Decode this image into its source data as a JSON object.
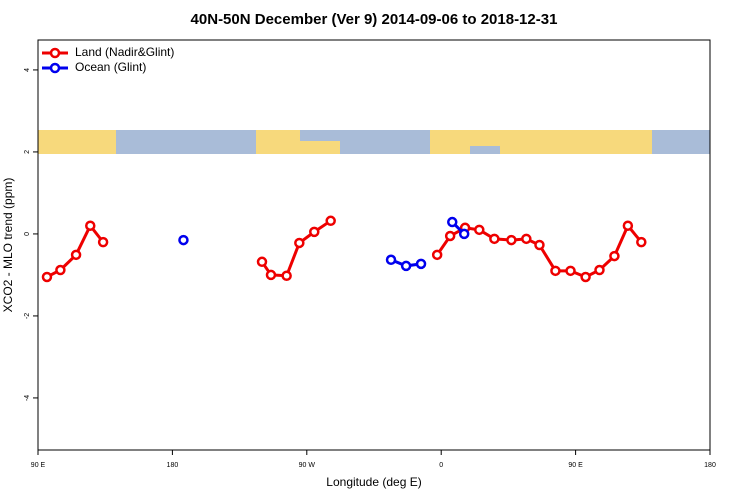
{
  "chart_data": {
    "type": "line",
    "title": "40N-50N December (Ver 9)   2014-09-06 to 2018-12-31",
    "xlabel": "Longitude (deg E)",
    "ylabel": "XCO2 - MLO trend (ppm)",
    "xlim": [
      90,
      540
    ],
    "ylim": [
      -5.27,
      4.73
    ],
    "xticks": [
      {
        "value": 90,
        "label": "90 E"
      },
      180,
      {
        "value": 270,
        "label": "90 W"
      },
      {
        "value": 360,
        "label": "0"
      },
      {
        "value": 450,
        "label": "90 E"
      },
      {
        "value": 540,
        "label": "180"
      }
    ],
    "yticks": [
      4,
      2,
      0,
      -2,
      -4
    ],
    "legend": "top-left",
    "series": [
      {
        "name": "Land (Nadir&Glint)",
        "color": "#ee0000",
        "x": [
          96,
          105,
          115.5,
          125,
          133.6,
          null,
          240,
          246,
          256.5,
          265,
          275,
          286,
          null,
          357.3,
          366,
          376,
          385.5,
          395.6,
          407,
          417,
          425.8,
          436.5,
          446.6,
          456.7,
          466,
          476,
          485,
          494
        ],
        "values": [
          -1.05,
          -0.88,
          -0.51,
          0.2,
          -0.2,
          null,
          -0.68,
          -1.0,
          -1.02,
          -0.22,
          0.05,
          0.32,
          null,
          -0.51,
          -0.05,
          0.15,
          0.1,
          -0.12,
          -0.15,
          -0.12,
          -0.27,
          -0.9,
          -0.9,
          -1.05,
          -0.88,
          -0.54,
          0.2,
          -0.2
        ]
      },
      {
        "name": "Ocean (Glint)",
        "color": "#0000ee",
        "x": [
          187.4,
          null,
          326.4,
          336.5,
          346.5,
          null,
          367.4,
          375.4
        ],
        "values": [
          -0.15,
          null,
          -0.63,
          -0.78,
          -0.73,
          null,
          0.29,
          0.0
        ]
      }
    ]
  }
}
